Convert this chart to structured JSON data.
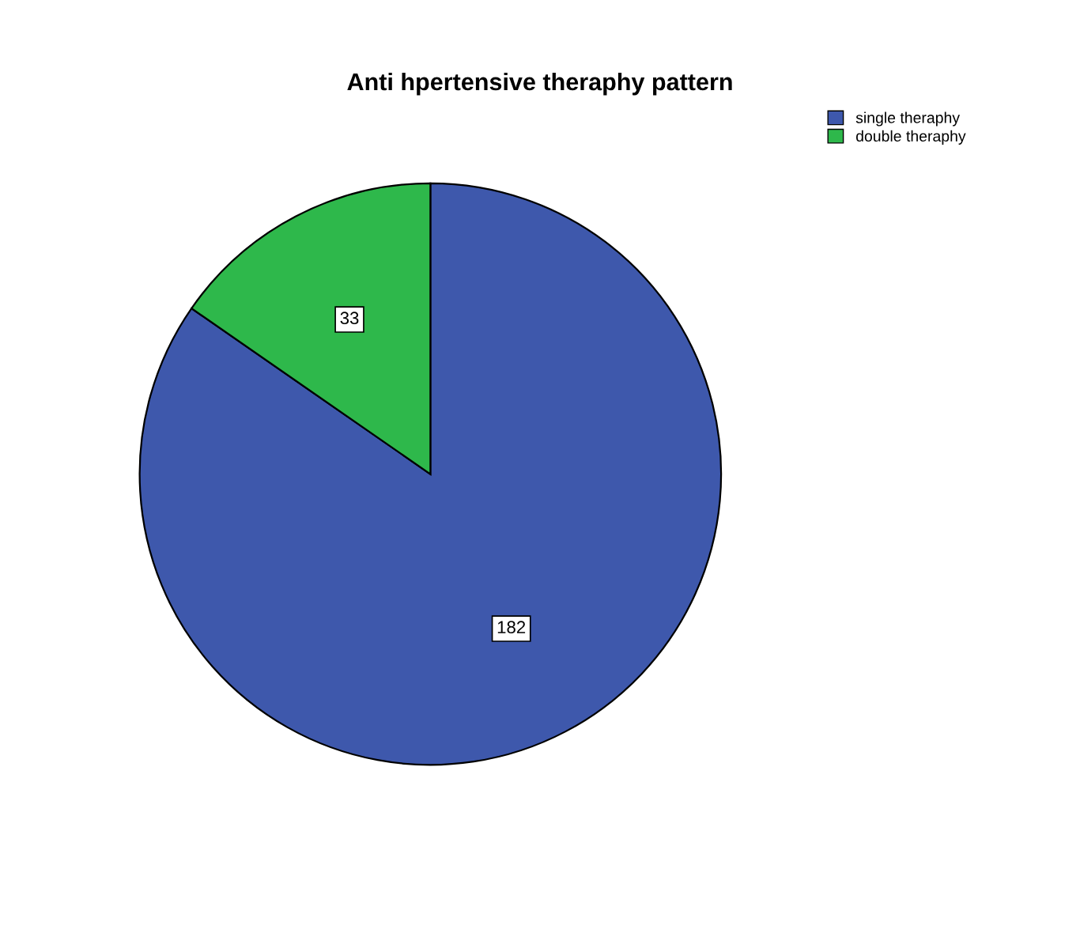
{
  "chart_data": {
    "type": "pie",
    "title": "Anti hpertensive theraphy pattern",
    "categories": [
      "single theraphy",
      "double theraphy"
    ],
    "values": [
      182,
      33
    ],
    "colors": [
      "#3e58ac",
      "#2eb84b"
    ],
    "data_labels": true,
    "legend": "top right"
  }
}
